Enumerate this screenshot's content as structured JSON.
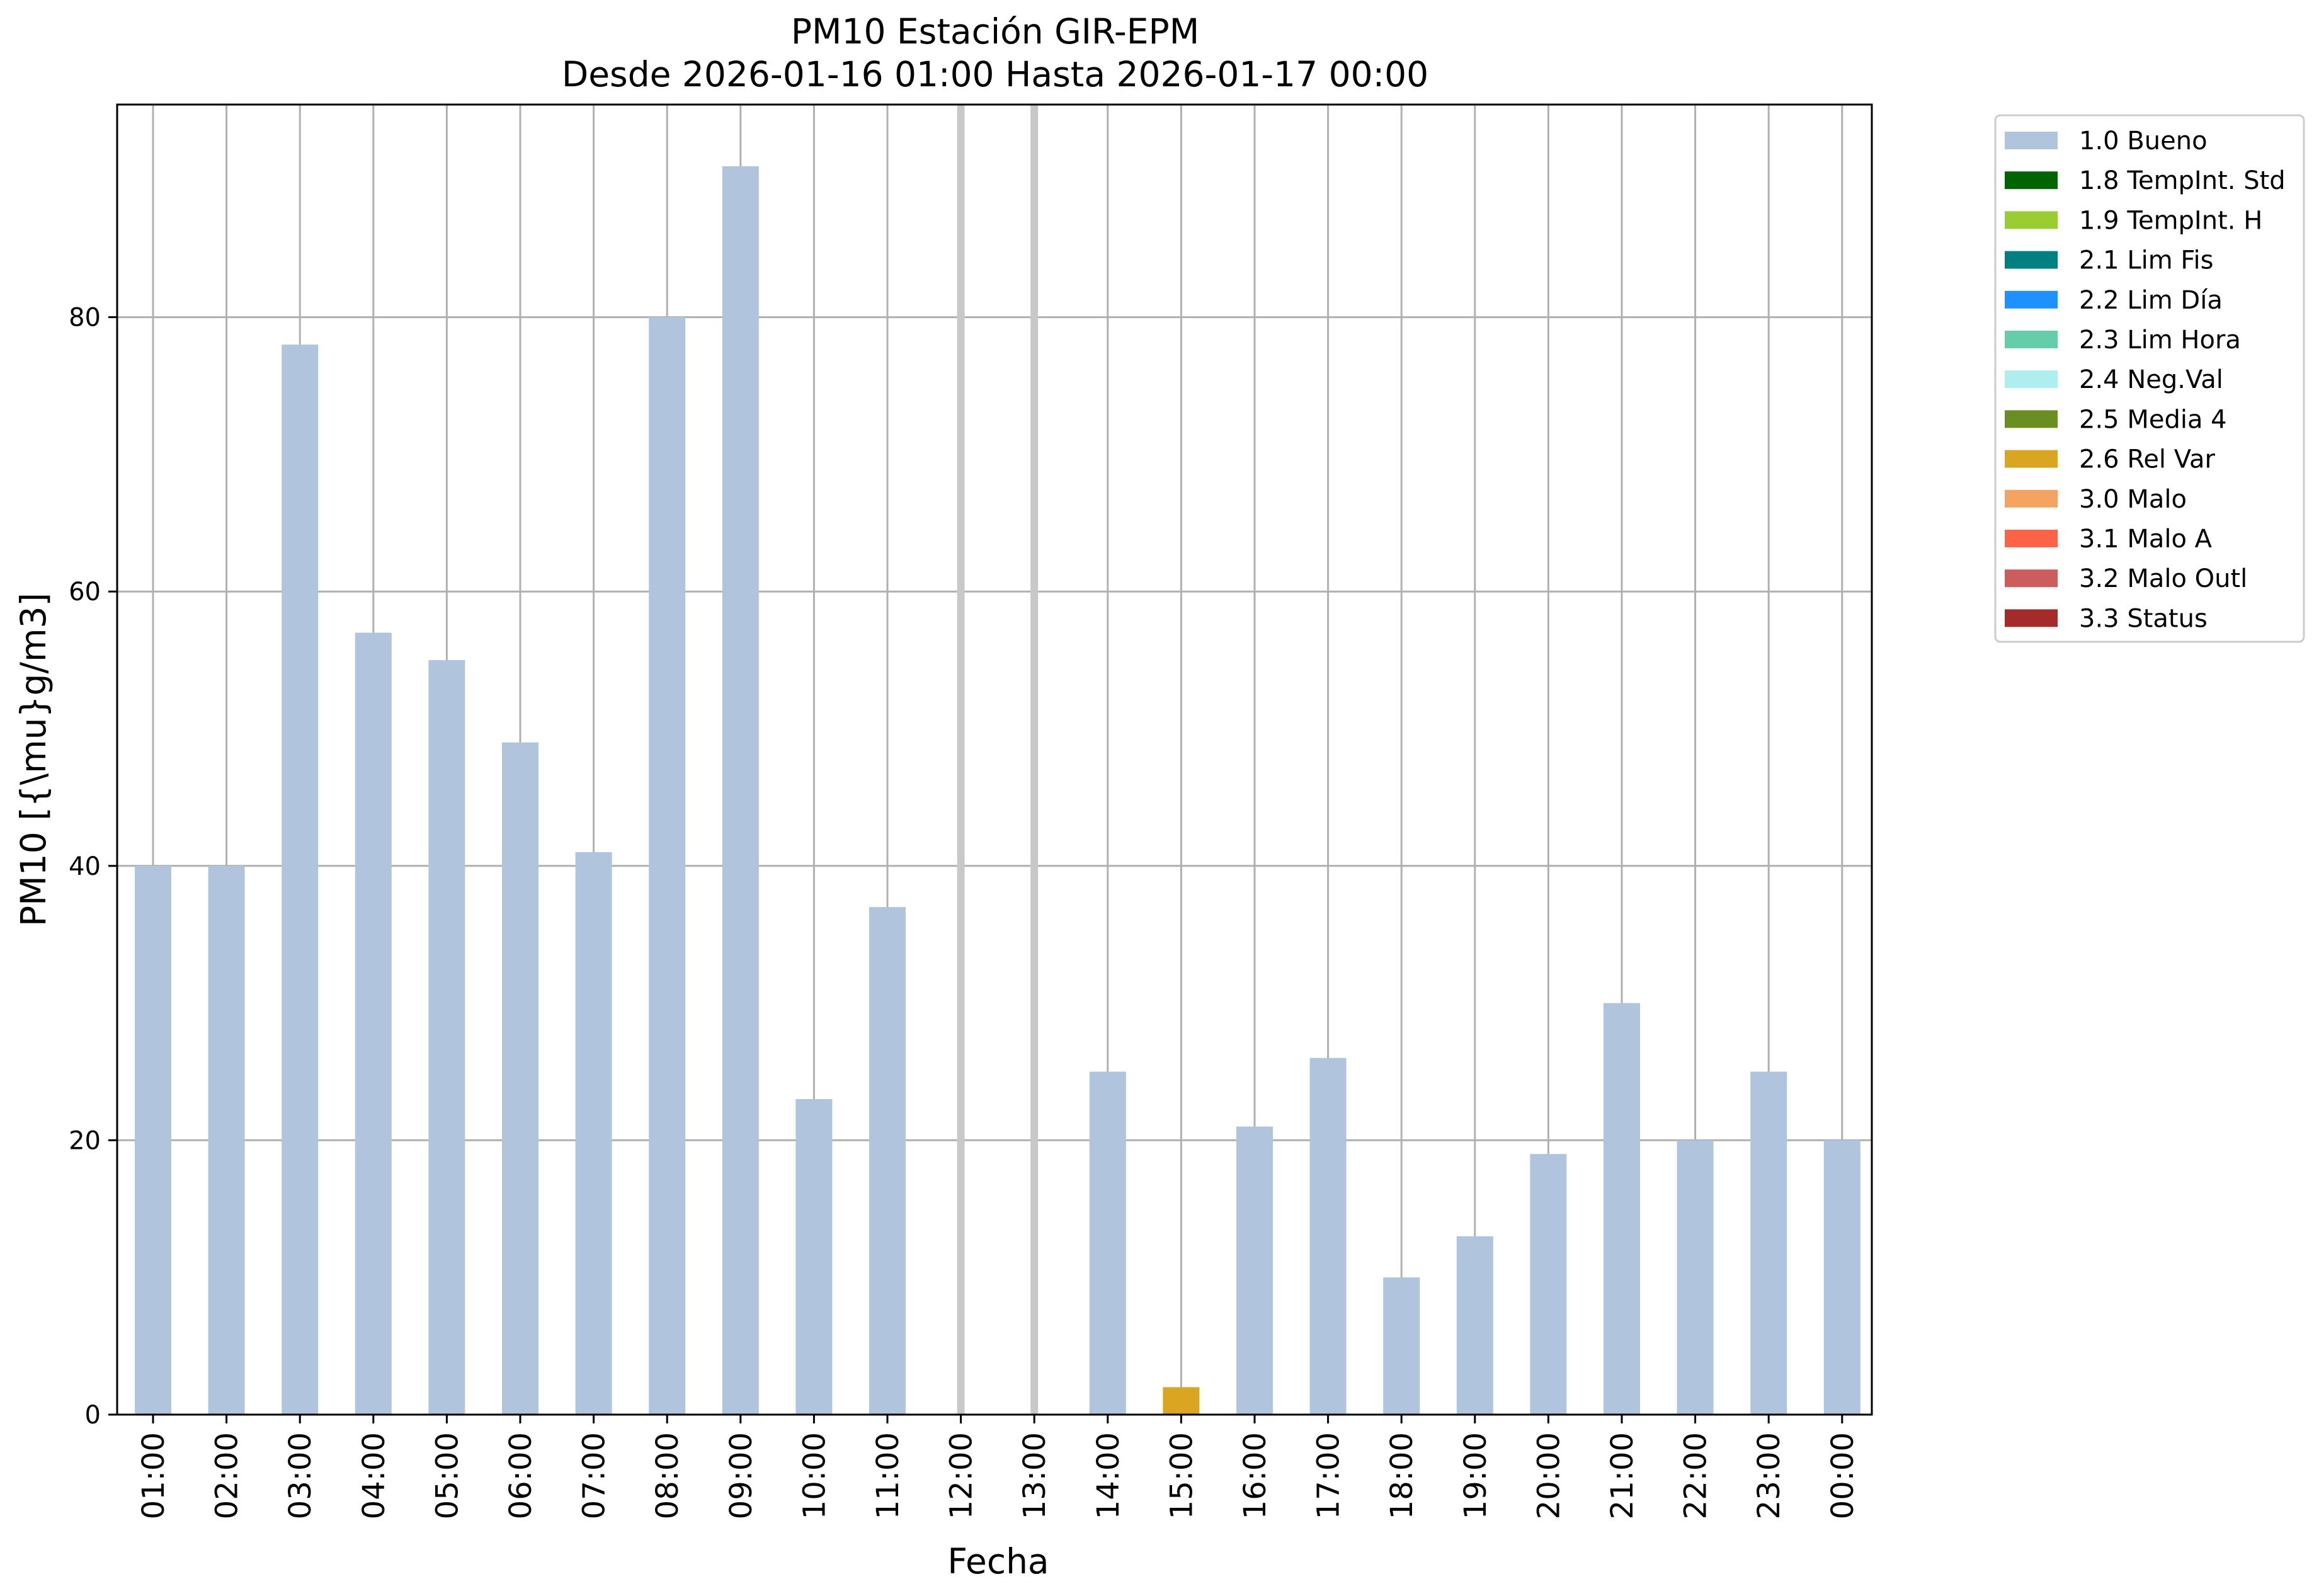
{
  "chart_data": {
    "type": "bar",
    "title": "PM10 Estación GIR-EPM",
    "subtitle": "Desde 2026-01-16 01:00 Hasta 2026-01-17 00:00",
    "xlabel": "Fecha",
    "ylabel": "PM10 [{\\mu}g/m3]",
    "ylim": [
      0,
      95.5
    ],
    "yticks": [
      0,
      20,
      40,
      60,
      80
    ],
    "grid": true,
    "legend_position": "outside-right-top",
    "categories": [
      "01:00",
      "02:00",
      "03:00",
      "04:00",
      "05:00",
      "06:00",
      "07:00",
      "08:00",
      "09:00",
      "10:00",
      "11:00",
      "12:00",
      "13:00",
      "14:00",
      "15:00",
      "16:00",
      "17:00",
      "18:00",
      "19:00",
      "20:00",
      "21:00",
      "22:00",
      "23:00",
      "00:00"
    ],
    "values": [
      40,
      40,
      78,
      57,
      55,
      49,
      41,
      80,
      91,
      23,
      37,
      null,
      null,
      25,
      2,
      21,
      26,
      10,
      13,
      19,
      30,
      20,
      25,
      20
    ],
    "flags": [
      "1.0 Bueno",
      "1.0 Bueno",
      "1.0 Bueno",
      "1.0 Bueno",
      "1.0 Bueno",
      "1.0 Bueno",
      "1.0 Bueno",
      "1.0 Bueno",
      "1.0 Bueno",
      "1.0 Bueno",
      "1.0 Bueno",
      null,
      null,
      "1.0 Bueno",
      "2.6 Rel Var",
      "1.0 Bueno",
      "1.0 Bueno",
      "1.0 Bueno",
      "1.0 Bueno",
      "1.0 Bueno",
      "1.0 Bueno",
      "1.0 Bueno",
      "1.0 Bueno",
      "1.0 Bueno"
    ],
    "missing_markers": [
      "12:00",
      "13:00"
    ],
    "legend": [
      {
        "label": "1.0 Bueno",
        "color": "#b0c4de"
      },
      {
        "label": "1.8 TempInt. Std",
        "color": "#006400"
      },
      {
        "label": "1.9 TempInt. H",
        "color": "#9acd32"
      },
      {
        "label": "2.1 Lim Fis",
        "color": "#008080"
      },
      {
        "label": "2.2 Lim Día",
        "color": "#1e90ff"
      },
      {
        "label": "2.3 Lim Hora",
        "color": "#66cdaa"
      },
      {
        "label": "2.4 Neg.Val",
        "color": "#afeeee"
      },
      {
        "label": "2.5 Media 4",
        "color": "#6b8e23"
      },
      {
        "label": "2.6 Rel Var",
        "color": "#daa520"
      },
      {
        "label": "3.0 Malo",
        "color": "#f4a460"
      },
      {
        "label": "3.1 Malo A",
        "color": "#ff6347"
      },
      {
        "label": "3.2 Malo Outl",
        "color": "#cd5c5c"
      },
      {
        "label": "3.3 Status",
        "color": "#a52a2a"
      }
    ],
    "colors": {
      "grid": "#b0b0b0",
      "missing_marker": "#c8c8c8"
    }
  }
}
